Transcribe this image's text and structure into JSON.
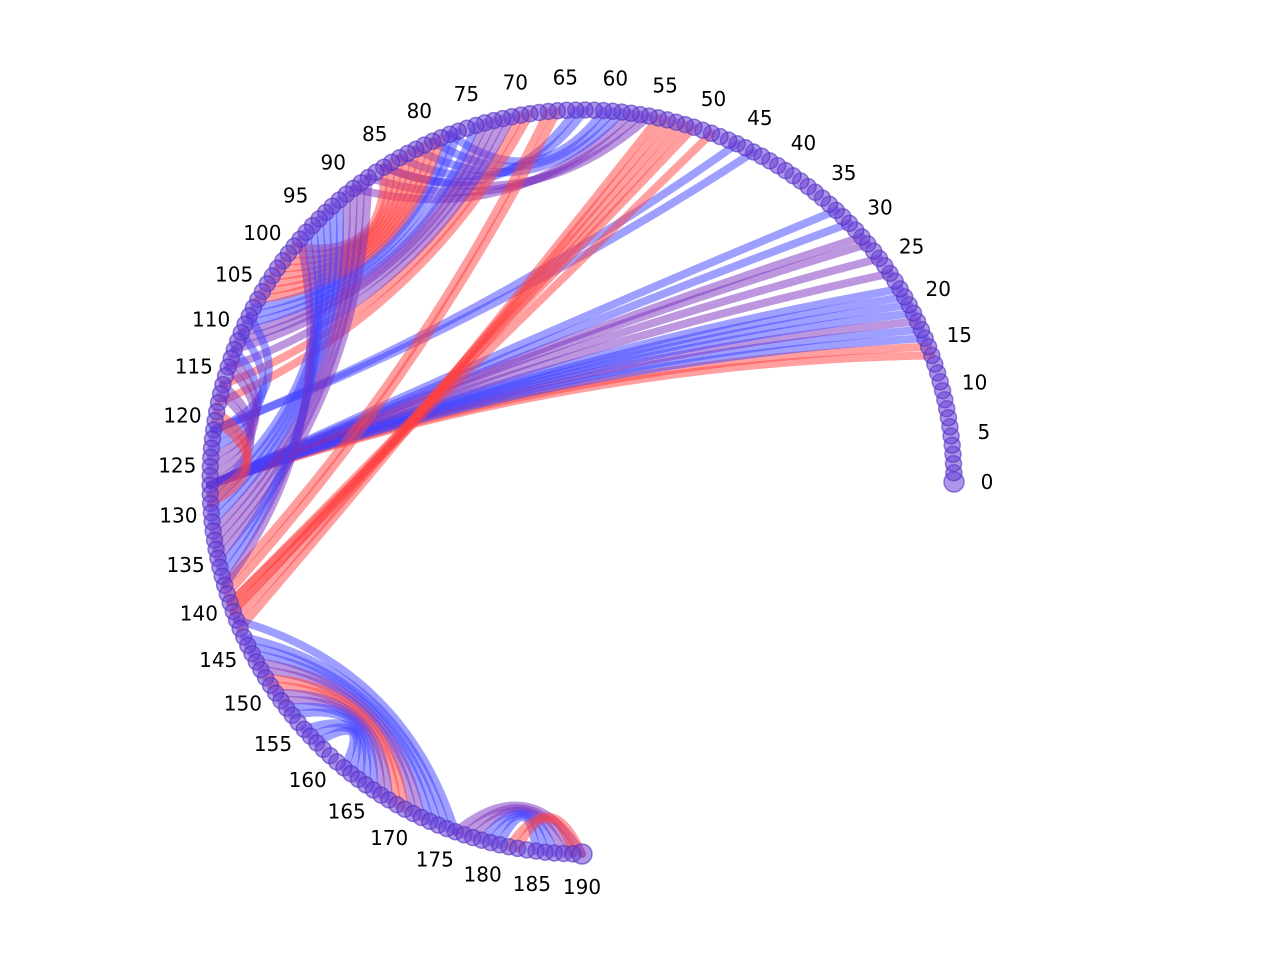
{
  "chart_data": {
    "type": "chord",
    "title": "",
    "node_count": 191,
    "tick_labels": [
      "0",
      "5",
      "10",
      "15",
      "20",
      "25",
      "30",
      "35",
      "40",
      "45",
      "50",
      "55",
      "60",
      "65",
      "70",
      "75",
      "80",
      "85",
      "90",
      "95",
      "100",
      "105",
      "110",
      "115",
      "120",
      "125",
      "130",
      "135",
      "140",
      "145",
      "150",
      "155",
      "160",
      "165",
      "170",
      "175",
      "180",
      "185",
      "190"
    ],
    "tick_values": [
      0,
      5,
      10,
      15,
      20,
      25,
      30,
      35,
      40,
      45,
      50,
      55,
      60,
      65,
      70,
      75,
      80,
      85,
      90,
      95,
      100,
      105,
      110,
      115,
      120,
      125,
      130,
      135,
      140,
      145,
      150,
      155,
      160,
      165,
      170,
      175,
      180,
      185,
      190
    ],
    "colors": {
      "red": "#ff4040",
      "blue": "#4040ff",
      "purple": "#7a2fbf",
      "node": "#6a3fd6"
    },
    "links": [
      {
        "a": 14,
        "b": 127,
        "c": "red"
      },
      {
        "a": 15,
        "b": 127,
        "c": "red"
      },
      {
        "a": 16,
        "b": 127,
        "c": "blue"
      },
      {
        "a": 17,
        "b": 127,
        "c": "blue"
      },
      {
        "a": 18,
        "b": 127,
        "c": "purple"
      },
      {
        "a": 19,
        "b": 127,
        "c": "blue"
      },
      {
        "a": 20,
        "b": 127,
        "c": "blue"
      },
      {
        "a": 21,
        "b": 127,
        "c": "blue"
      },
      {
        "a": 22,
        "b": 127,
        "c": "blue"
      },
      {
        "a": 24,
        "b": 127,
        "c": "purple"
      },
      {
        "a": 26,
        "b": 127,
        "c": "purple"
      },
      {
        "a": 28,
        "b": 127,
        "c": "purple"
      },
      {
        "a": 29,
        "b": 127,
        "c": "purple"
      },
      {
        "a": 31,
        "b": 127,
        "c": "blue"
      },
      {
        "a": 33,
        "b": 127,
        "c": "blue"
      },
      {
        "a": 44,
        "b": 121,
        "c": "blue"
      },
      {
        "a": 46,
        "b": 121,
        "c": "blue"
      },
      {
        "a": 49,
        "b": 140,
        "c": "red"
      },
      {
        "a": 51,
        "b": 140,
        "c": "red"
      },
      {
        "a": 52,
        "b": 141,
        "c": "red"
      },
      {
        "a": 53,
        "b": 141,
        "c": "red"
      },
      {
        "a": 54,
        "b": 142,
        "c": "red"
      },
      {
        "a": 55,
        "b": 143,
        "c": "red"
      },
      {
        "a": 56,
        "b": 86,
        "c": "purple"
      },
      {
        "a": 57,
        "b": 88,
        "c": "purple"
      },
      {
        "a": 58,
        "b": 90,
        "c": "purple"
      },
      {
        "a": 59,
        "b": 82,
        "c": "blue"
      },
      {
        "a": 60,
        "b": 80,
        "c": "blue"
      },
      {
        "a": 61,
        "b": 78,
        "c": "blue"
      },
      {
        "a": 63,
        "b": 84,
        "c": "blue"
      },
      {
        "a": 64,
        "b": 86,
        "c": "blue"
      },
      {
        "a": 66,
        "b": 139,
        "c": "red"
      },
      {
        "a": 67,
        "b": 138,
        "c": "red"
      },
      {
        "a": 69,
        "b": 118,
        "c": "red"
      },
      {
        "a": 70,
        "b": 116,
        "c": "red"
      },
      {
        "a": 71,
        "b": 114,
        "c": "purple"
      },
      {
        "a": 72,
        "b": 112,
        "c": "purple"
      },
      {
        "a": 73,
        "b": 111,
        "c": "purple"
      },
      {
        "a": 74,
        "b": 110,
        "c": "purple"
      },
      {
        "a": 75,
        "b": 109,
        "c": "blue"
      },
      {
        "a": 77,
        "b": 108,
        "c": "blue"
      },
      {
        "a": 78,
        "b": 107,
        "c": "blue"
      },
      {
        "a": 79,
        "b": 106,
        "c": "red"
      },
      {
        "a": 80,
        "b": 105,
        "c": "red"
      },
      {
        "a": 81,
        "b": 104,
        "c": "red"
      },
      {
        "a": 82,
        "b": 103,
        "c": "red"
      },
      {
        "a": 83,
        "b": 102,
        "c": "red"
      },
      {
        "a": 84,
        "b": 101,
        "c": "red"
      },
      {
        "a": 85,
        "b": 100,
        "c": "red"
      },
      {
        "a": 86,
        "b": 99,
        "c": "red"
      },
      {
        "a": 88,
        "b": 135,
        "c": "purple"
      },
      {
        "a": 89,
        "b": 134,
        "c": "purple"
      },
      {
        "a": 90,
        "b": 133,
        "c": "purple"
      },
      {
        "a": 91,
        "b": 132,
        "c": "purple"
      },
      {
        "a": 92,
        "b": 131,
        "c": "blue"
      },
      {
        "a": 93,
        "b": 130,
        "c": "blue"
      },
      {
        "a": 94,
        "b": 129,
        "c": "blue"
      },
      {
        "a": 95,
        "b": 128,
        "c": "blue"
      },
      {
        "a": 96,
        "b": 136,
        "c": "blue"
      },
      {
        "a": 97,
        "b": 137,
        "c": "blue"
      },
      {
        "a": 98,
        "b": 138,
        "c": "purple"
      },
      {
        "a": 108,
        "b": 121,
        "c": "blue"
      },
      {
        "a": 110,
        "b": 122,
        "c": "blue"
      },
      {
        "a": 112,
        "b": 123,
        "c": "blue"
      },
      {
        "a": 113,
        "b": 124,
        "c": "purple"
      },
      {
        "a": 114,
        "b": 125,
        "c": "purple"
      },
      {
        "a": 116,
        "b": 126,
        "c": "purple"
      },
      {
        "a": 117,
        "b": 127,
        "c": "purple"
      },
      {
        "a": 119,
        "b": 128,
        "c": "red"
      },
      {
        "a": 120,
        "b": 129,
        "c": "red"
      },
      {
        "a": 142,
        "b": 176,
        "c": "blue"
      },
      {
        "a": 144,
        "b": 175,
        "c": "blue"
      },
      {
        "a": 145,
        "b": 174,
        "c": "blue"
      },
      {
        "a": 146,
        "b": 173,
        "c": "blue"
      },
      {
        "a": 147,
        "b": 172,
        "c": "purple"
      },
      {
        "a": 148,
        "b": 171,
        "c": "purple"
      },
      {
        "a": 149,
        "b": 170,
        "c": "red"
      },
      {
        "a": 150,
        "b": 169,
        "c": "red"
      },
      {
        "a": 151,
        "b": 168,
        "c": "purple"
      },
      {
        "a": 152,
        "b": 167,
        "c": "purple"
      },
      {
        "a": 153,
        "b": 166,
        "c": "blue"
      },
      {
        "a": 154,
        "b": 165,
        "c": "blue"
      },
      {
        "a": 156,
        "b": 164,
        "c": "blue"
      },
      {
        "a": 157,
        "b": 163,
        "c": "blue"
      },
      {
        "a": 158,
        "b": 162,
        "c": "blue"
      },
      {
        "a": 176,
        "b": 190,
        "c": "purple"
      },
      {
        "a": 177,
        "b": 189,
        "c": "purple"
      },
      {
        "a": 178,
        "b": 188,
        "c": "purple"
      },
      {
        "a": 179,
        "b": 187,
        "c": "blue"
      },
      {
        "a": 180,
        "b": 186,
        "c": "blue"
      },
      {
        "a": 181,
        "b": 185,
        "c": "blue"
      },
      {
        "a": 182,
        "b": 190,
        "c": "red"
      },
      {
        "a": 183,
        "b": 189,
        "c": "red"
      }
    ]
  }
}
